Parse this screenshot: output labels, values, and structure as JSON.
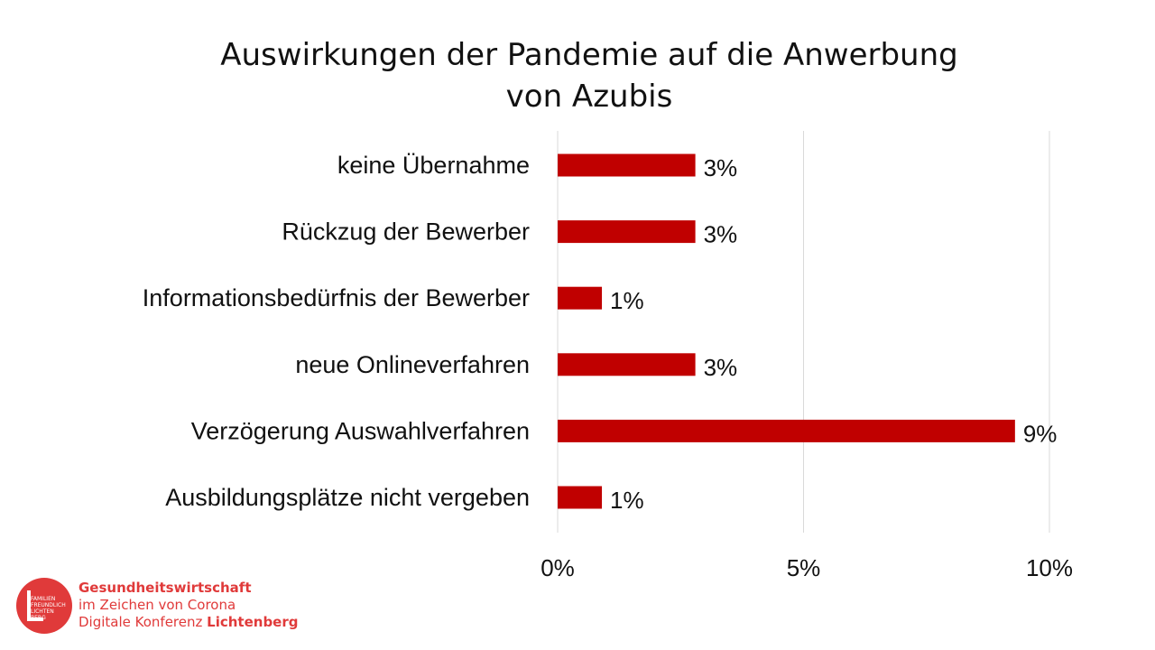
{
  "title_line1": "Auswirkungen der Pandemie auf die Anwerbung",
  "title_line2": "von Azubis",
  "colors": {
    "bar": "#c00000",
    "grid": "#d9d9d9",
    "text": "#111111",
    "logo": "#e03a3a"
  },
  "chart_data": {
    "type": "bar",
    "orientation": "horizontal",
    "categories": [
      "keine Übernahme",
      "Rückzug der Bewerber",
      "Informationsbedürfnis der Bewerber",
      "neue Onlineverfahren",
      "Verzögerung Auswahlverfahren",
      "Ausbildungsplätze nicht vergeben"
    ],
    "values": [
      2.8,
      2.8,
      0.9,
      2.8,
      9.3,
      0.9
    ],
    "data_labels": [
      "3%",
      "3%",
      "1%",
      "3%",
      "9%",
      "1%"
    ],
    "xlim": [
      0,
      10
    ],
    "xticks": [
      0,
      5,
      10
    ],
    "xtick_labels": [
      "0%",
      "5%",
      "10%"
    ],
    "grid": true,
    "legend": "none"
  },
  "logo": {
    "badge_text": "FAMILIEN\nFREUNDLICH\nLICHTEN\nBERG",
    "line1": "Gesundheitswirtschaft",
    "line2": "im Zeichen von Corona",
    "line3_prefix": "Digitale Konferenz ",
    "line3_bold": "Lichtenberg"
  }
}
